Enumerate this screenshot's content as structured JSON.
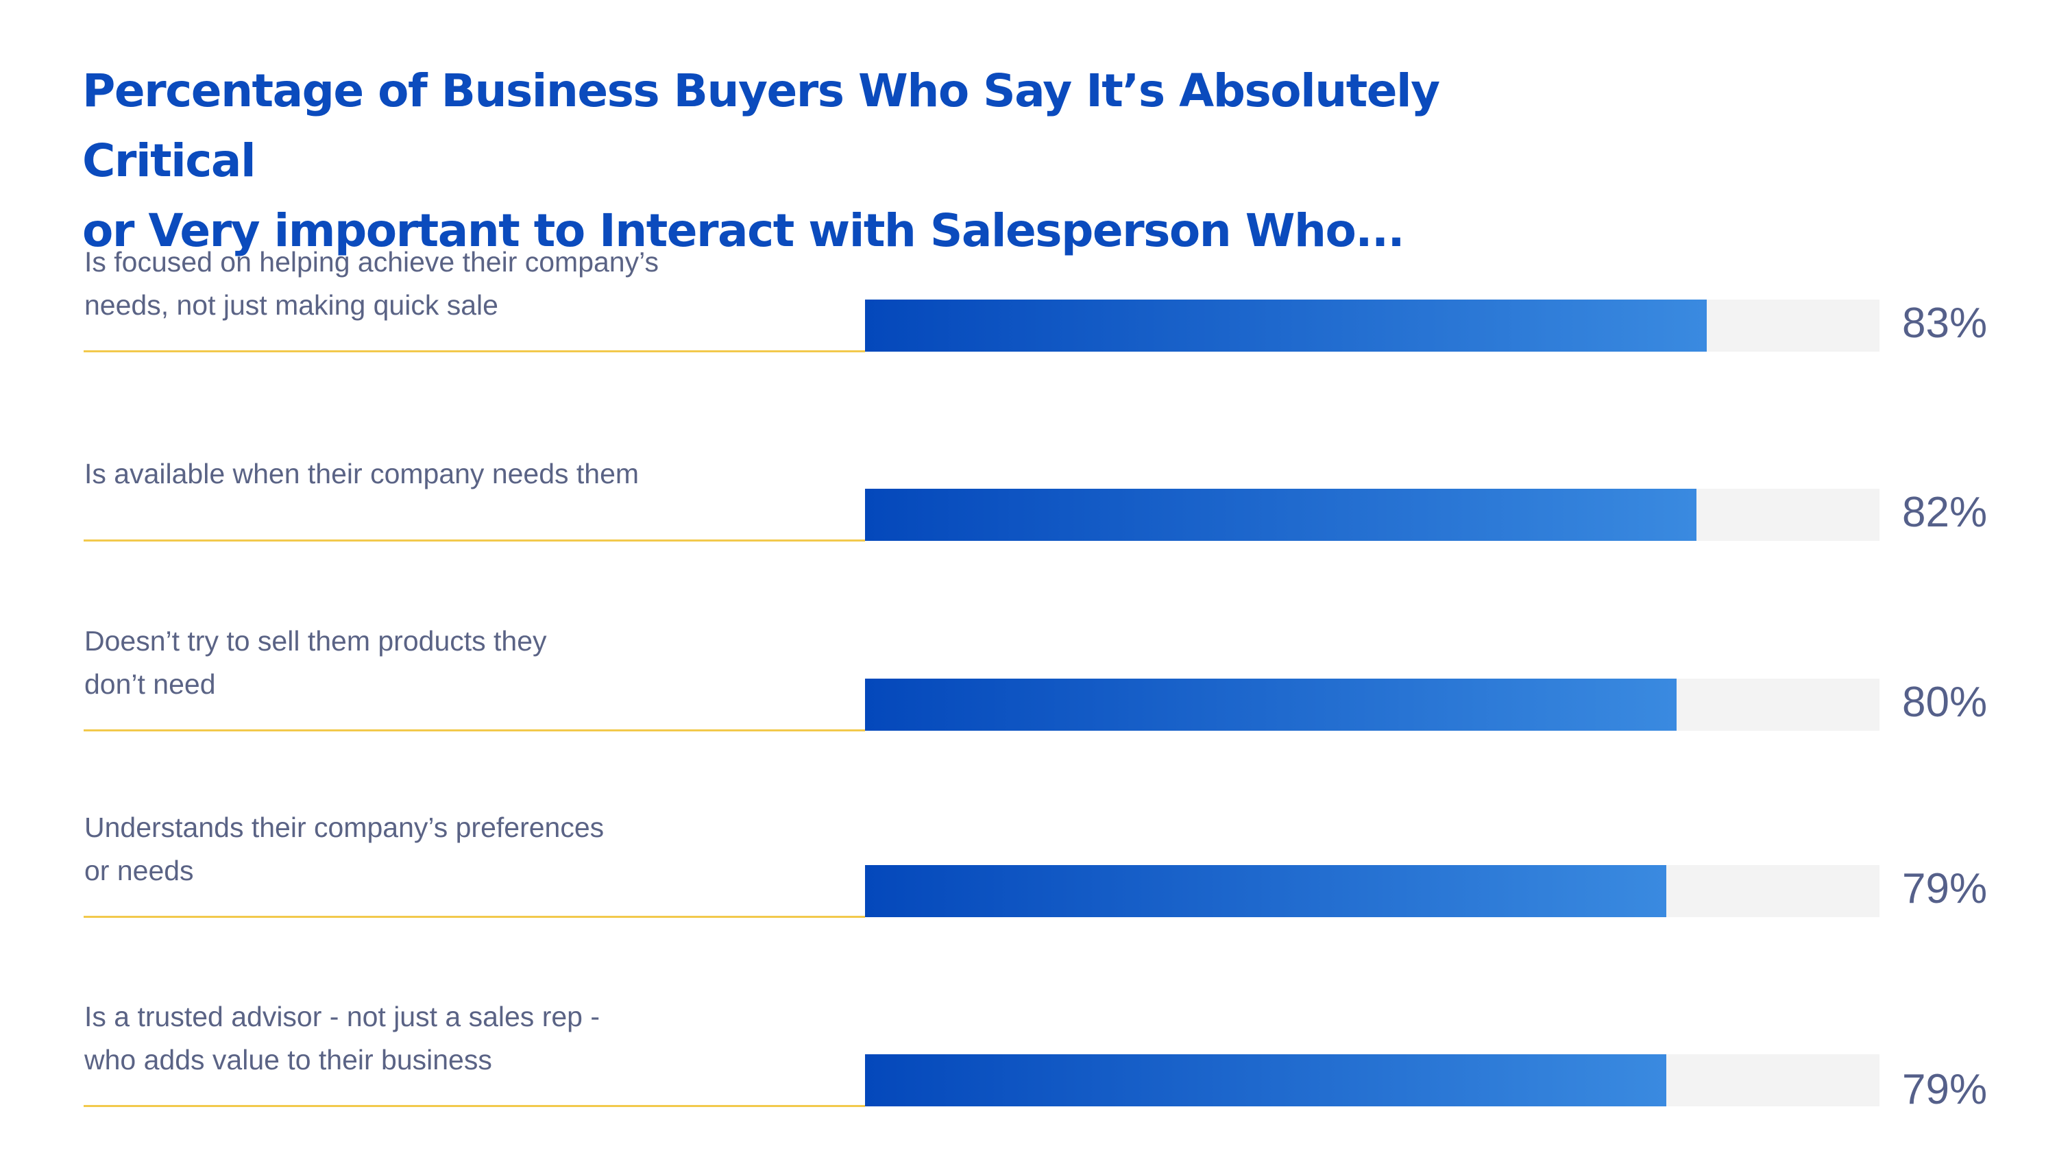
{
  "chart_data": {
    "type": "bar",
    "orientation": "horizontal",
    "title": "Percentage of Business Buyers Who Say It’s Absolutely Critical\nor Very important to Interact with Salesperson Who...",
    "categories": [
      "Is focused on helping achieve their company’s\nneeds, not just making quick sale",
      "Is available when their company needs them",
      "Doesn’t try to sell them products they\ndon’t need",
      "Understands their company’s preferences\nor needs",
      "Is a trusted advisor - not just a sales rep -\nwho adds value to their business"
    ],
    "values": [
      83,
      82,
      80,
      79,
      79
    ],
    "value_labels": [
      "83%",
      "82%",
      "80%",
      "79%",
      "79%"
    ],
    "xlim": [
      0,
      100
    ],
    "unit": "%",
    "grid": false,
    "legend": "none"
  },
  "colors": {
    "title": "#0b4bbd",
    "label_text": "#5a6385",
    "value_text": "#55608a",
    "underline": "#f2c94c",
    "track": "#f3f3f3",
    "bar_gradient_start": "#0448bb",
    "bar_gradient_end": "#3a8ae0"
  }
}
